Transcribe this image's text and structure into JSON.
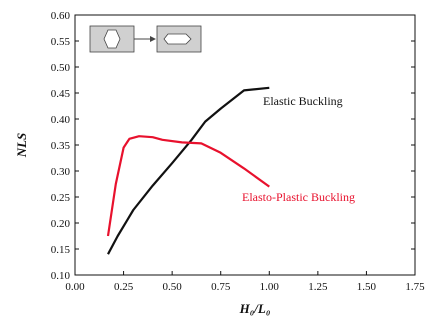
{
  "chart_data": {
    "type": "line",
    "xlabel": "H₀/L₀",
    "ylabel": "NLS",
    "xlim": [
      0,
      1.75
    ],
    "ylim": [
      0.1,
      0.6
    ],
    "x_ticks": [
      "0.00",
      "0.25",
      "0.50",
      "0.75",
      "1.00",
      "1.25",
      "1.50",
      "1.75"
    ],
    "y_ticks": [
      "0.10",
      "0.15",
      "0.20",
      "0.25",
      "0.30",
      "0.35",
      "0.40",
      "0.45",
      "0.50",
      "0.55",
      "0.60"
    ],
    "grid": false,
    "series": [
      {
        "name": "Elastic Buckling",
        "color": "#111111",
        "x": [
          0.17,
          0.22,
          0.3,
          0.4,
          0.5,
          0.6,
          0.67,
          0.75,
          0.87,
          1.0
        ],
        "y": [
          0.14,
          0.175,
          0.225,
          0.272,
          0.315,
          0.36,
          0.395,
          0.42,
          0.455,
          0.46
        ]
      },
      {
        "name": "Elasto-Plastic Buckling",
        "color": "#e8112d",
        "x": [
          0.17,
          0.21,
          0.25,
          0.28,
          0.33,
          0.4,
          0.45,
          0.55,
          0.65,
          0.75,
          0.87,
          1.0
        ],
        "y": [
          0.175,
          0.275,
          0.345,
          0.362,
          0.367,
          0.365,
          0.36,
          0.355,
          0.353,
          0.335,
          0.305,
          0.27
        ]
      }
    ]
  },
  "inset": {
    "arrow_icon": "right-arrow-icon",
    "left_shape_icon": "hexagon-vertical-icon",
    "right_shape_icon": "hexagon-horizontal-icon",
    "panel_color": "#d0d0d0"
  }
}
